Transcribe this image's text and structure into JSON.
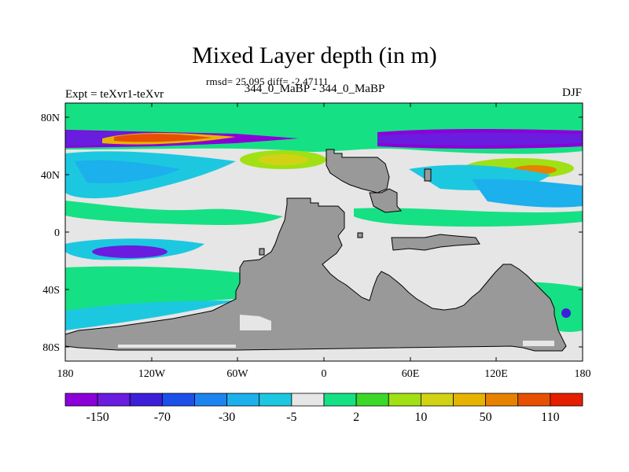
{
  "header": {
    "title": "Mixed Layer depth (in m)",
    "stats": "rmsd= 25.095 diff= -2.47111",
    "subtitle": "344_0_MaBP - 344_0_MaBP",
    "left_label": "Expt = teXvr1-teXvr",
    "right_label": "DJF"
  },
  "map": {
    "lat_ticks": [
      "80N",
      "40N",
      "0",
      "40S",
      "80S"
    ],
    "lon_ticks": [
      "180",
      "120W",
      "60W",
      "0",
      "60E",
      "120E",
      "180"
    ],
    "land_color": "#999999",
    "ocean_zero_color": "#e6e6e6"
  },
  "colorbar": {
    "colors": [
      "#8b00d8",
      "#6a1cdf",
      "#3c1fd8",
      "#1c50e8",
      "#1c84f0",
      "#1cb0ec",
      "#1cc8e0",
      "#e6e6e6",
      "#16e084",
      "#3cd828",
      "#a0e014",
      "#d2d214",
      "#e6b400",
      "#e68200",
      "#e65000",
      "#e61e00"
    ],
    "labels": [
      "-150",
      "-70",
      "-30",
      "-5",
      "2",
      "10",
      "50",
      "110"
    ]
  }
}
